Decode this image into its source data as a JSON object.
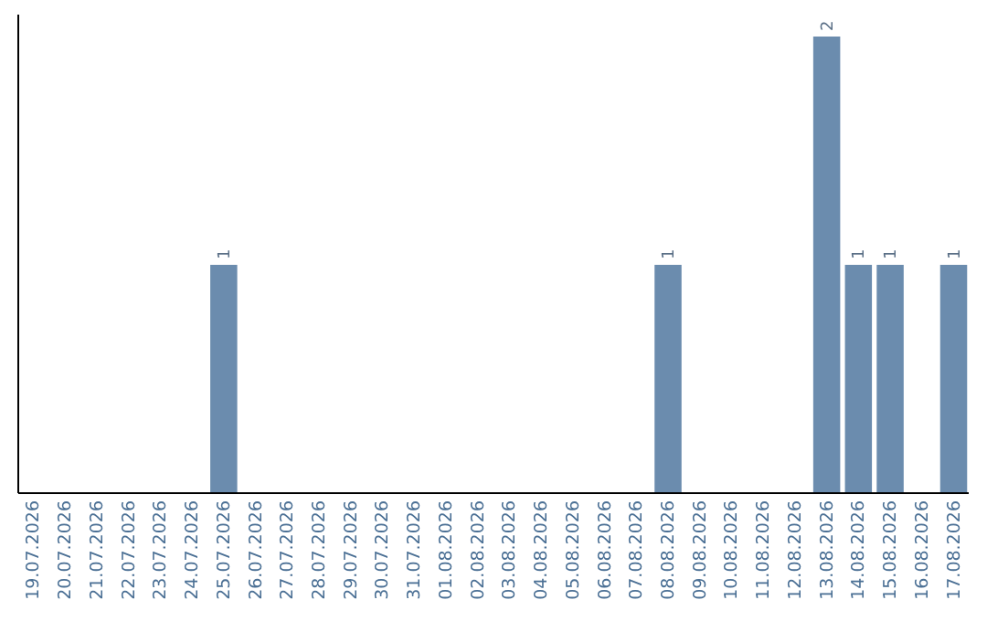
{
  "chart_data": {
    "type": "bar",
    "categories": [
      "19.07.2026",
      "20.07.2026",
      "21.07.2026",
      "22.07.2026",
      "23.07.2026",
      "24.07.2026",
      "25.07.2026",
      "26.07.2026",
      "27.07.2026",
      "28.07.2026",
      "29.07.2026",
      "30.07.2026",
      "31.07.2026",
      "01.08.2026",
      "02.08.2026",
      "03.08.2026",
      "04.08.2026",
      "05.08.2026",
      "06.08.2026",
      "07.08.2026",
      "08.08.2026",
      "09.08.2026",
      "10.08.2026",
      "11.08.2026",
      "12.08.2026",
      "13.08.2026",
      "14.08.2026",
      "15.08.2026",
      "16.08.2026",
      "17.08.2026"
    ],
    "values": [
      0,
      0,
      0,
      0,
      0,
      0,
      1,
      0,
      0,
      0,
      0,
      0,
      0,
      0,
      0,
      0,
      0,
      0,
      0,
      0,
      1,
      0,
      0,
      0,
      0,
      2,
      1,
      1,
      0,
      1
    ],
    "value_labels": [
      null,
      null,
      null,
      null,
      null,
      null,
      "1",
      null,
      null,
      null,
      null,
      null,
      null,
      null,
      null,
      null,
      null,
      null,
      null,
      null,
      "1",
      null,
      null,
      null,
      null,
      "2",
      "1",
      "1",
      null,
      "1"
    ],
    "color": "#6b8cae",
    "tick_labels": "x"
  }
}
